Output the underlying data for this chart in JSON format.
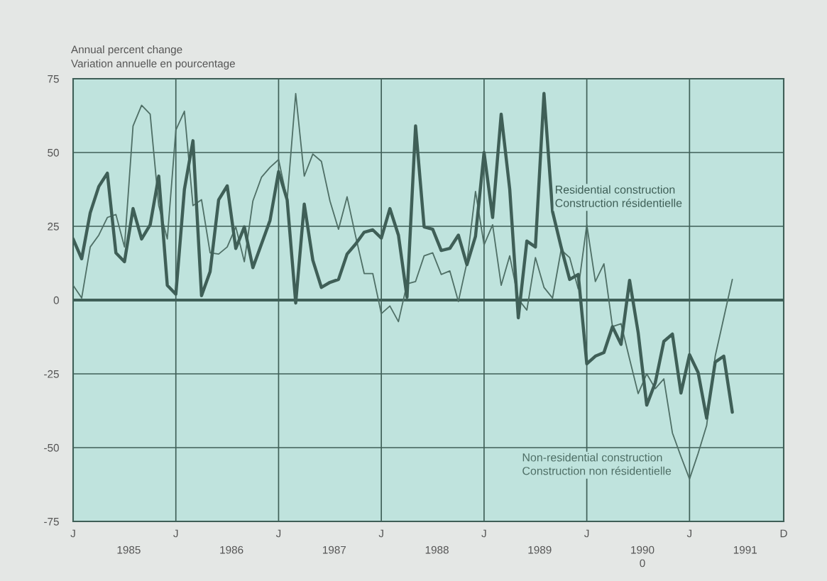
{
  "chart_data": {
    "type": "line",
    "ylabel": "Annual percent change\nVariation annuelle en pourcentage",
    "categories": [
      "J",
      null,
      null,
      null,
      null,
      null,
      null,
      null,
      null,
      null,
      null,
      null,
      "J",
      null,
      null,
      null,
      null,
      null,
      null,
      null,
      null,
      null,
      null,
      null,
      "J",
      null,
      null,
      null,
      null,
      null,
      null,
      null,
      null,
      null,
      null,
      null,
      "J",
      null,
      null,
      null,
      null,
      null,
      null,
      null,
      null,
      null,
      null,
      null,
      "J",
      null,
      null,
      null,
      null,
      null,
      null,
      null,
      null,
      null,
      null,
      null,
      "J",
      null,
      null,
      null,
      null,
      null,
      null,
      null,
      null,
      null,
      null,
      null,
      "J",
      null,
      null,
      null,
      null,
      null,
      null,
      null,
      null,
      null,
      null,
      "D"
    ],
    "series": [
      {
        "name": "Residential construction\nConstruction résidentielle",
        "color": "#3f5f57",
        "values": [
          20.7,
          14,
          29.6,
          38.5,
          43,
          16,
          13,
          31,
          20.7,
          25.5,
          42,
          5,
          2,
          37.5,
          54,
          1.5,
          9.6,
          34,
          38.7,
          17.5,
          24.8,
          11,
          19,
          27,
          43.5,
          34,
          -1,
          32.5,
          13.5,
          4.3,
          6,
          7,
          15.6,
          19,
          23,
          23.8,
          21,
          31,
          22,
          1,
          59,
          24.8,
          24,
          16.8,
          17.5,
          22,
          12,
          21.6,
          50,
          28,
          63,
          37.5,
          -6,
          20,
          18,
          70,
          30,
          18,
          7,
          8.7,
          -21.6,
          -19,
          -17.8,
          -9,
          -15,
          6.7,
          -11,
          -35.6,
          -28,
          -14,
          -11.5,
          -31.5,
          -18.5,
          -24.5,
          -40,
          -21,
          -19,
          -38,
          null,
          null,
          null,
          null,
          null,
          null
        ]
      },
      {
        "name": "Non-residential construction\nConstruction non résidentielle",
        "color": "#4f6f66",
        "values": [
          5,
          0.7,
          18,
          22,
          28,
          29,
          18,
          59,
          66,
          63,
          32,
          20.7,
          57.6,
          64,
          32,
          34,
          16,
          15.6,
          18,
          24.8,
          13,
          33.6,
          41.6,
          45,
          47.6,
          34,
          70,
          42,
          49.5,
          47,
          33.6,
          24,
          35,
          21.6,
          9,
          9,
          -4.6,
          -2,
          -7.3,
          5.5,
          6.3,
          15,
          16,
          8.7,
          9.9,
          -0.5,
          12.7,
          36.8,
          18.7,
          25.5,
          5,
          15,
          0.3,
          -3.4,
          14.4,
          4.3,
          0.7,
          17,
          14.4,
          3.8,
          25.5,
          6.3,
          12.3,
          -9,
          -8,
          -20,
          -31.7,
          -25,
          -30,
          -26.7,
          -45,
          -53,
          -60.6,
          -52,
          -42.5,
          -19,
          -6,
          7,
          null,
          null,
          null,
          null,
          null,
          null
        ]
      }
    ],
    "ylim": [
      -75,
      75
    ],
    "yticks": [
      -75,
      -50,
      -25,
      0,
      25,
      50,
      75
    ],
    "ref_lines": [
      {
        "axis": "y",
        "value": 0,
        "color": "#3f5f57"
      }
    ],
    "grid": true,
    "legend": false,
    "annotations": [
      "1985",
      "1986",
      "1987",
      "1988",
      "1989",
      "1990",
      "1991",
      "0"
    ]
  }
}
